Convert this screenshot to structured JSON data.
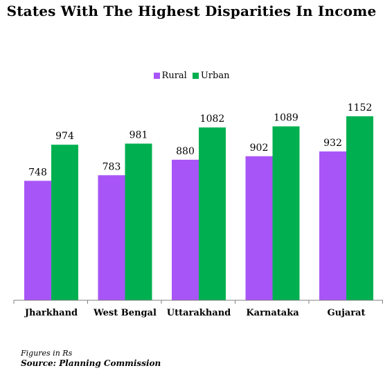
{
  "chart_data": {
    "type": "bar",
    "title": "States With The Highest Disparities In Income",
    "categories": [
      "Jharkhand",
      "West Bengal",
      "Uttarakhand",
      "Karnataka",
      "Gujarat"
    ],
    "series": [
      {
        "name": "Rural",
        "color": "#a855f7",
        "values": [
          748,
          783,
          880,
          902,
          932
        ]
      },
      {
        "name": "Urban",
        "color": "#00b050",
        "values": [
          974,
          981,
          1082,
          1089,
          1152
        ]
      }
    ],
    "ylim": [
      0,
      1200
    ],
    "grid": false,
    "legend_position": "top-center",
    "data_labels": true
  },
  "footnote": {
    "units": "Figures in Rs",
    "source": "Source: Planning Commission"
  }
}
